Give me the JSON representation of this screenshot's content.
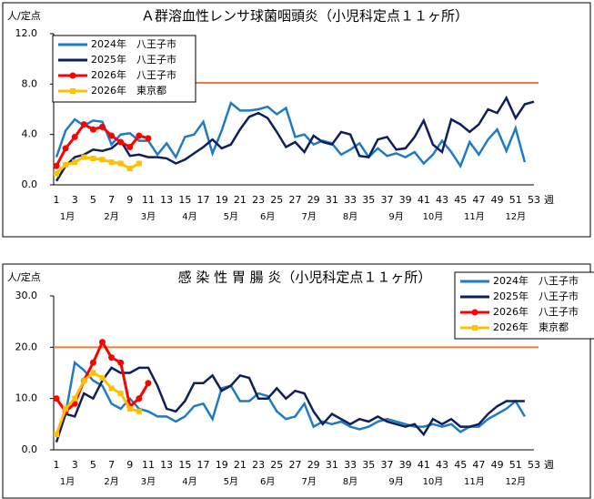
{
  "chart_data": [
    {
      "type": "line",
      "title": "Ａ群溶血性レンサ球菌咽頭炎（小児科定点１１ヶ所）",
      "y_label": "人/定点",
      "x_label": "週",
      "categories": [
        1,
        null,
        3,
        null,
        5,
        null,
        7,
        null,
        9,
        null,
        11,
        null,
        13,
        null,
        15,
        null,
        17,
        null,
        19,
        null,
        21,
        null,
        23,
        null,
        25,
        null,
        27,
        null,
        29,
        null,
        31,
        null,
        33,
        null,
        35,
        null,
        37,
        null,
        39,
        null,
        41,
        null,
        43,
        null,
        45,
        null,
        47,
        null,
        49,
        null,
        51,
        null,
        53
      ],
      "months": [
        "1月",
        "2月",
        "3月",
        "4月",
        "5月",
        "6月",
        "7月",
        "8月",
        "9月",
        "10月",
        "11月",
        "12月"
      ],
      "ylim": [
        0,
        12
      ],
      "yticks": [
        {
          "value": 0,
          "label": "0.0"
        },
        {
          "value": 4,
          "label": "4.0"
        },
        {
          "value": 8,
          "label": "8.0"
        },
        {
          "value": 12,
          "label": "12.0"
        }
      ],
      "reference_line": {
        "value": 8.1,
        "color": "#ed7d31"
      },
      "legend": "top-left",
      "series": [
        {
          "name": "2024年　八王子市",
          "color": "#1f7bc4",
          "marker": "none",
          "values": [
            2.2,
            4.3,
            5.2,
            4.7,
            5.1,
            5.0,
            3.2,
            4.0,
            4.1,
            3.5,
            3.5,
            2.4,
            3.3,
            2.2,
            3.8,
            4.0,
            5.0,
            2.5,
            4.3,
            6.5,
            5.9,
            5.9,
            6.0,
            6.2,
            5.6,
            6.1,
            3.8,
            4.0,
            3.2,
            3.5,
            3.3,
            2.4,
            2.8,
            3.3,
            2.2,
            2.9,
            2.3,
            2.5,
            2.2,
            2.6,
            1.7,
            2.4,
            3.5,
            2.6,
            1.5,
            3.4,
            2.4,
            3.6,
            4.4,
            2.7,
            4.5,
            1.8,
            null
          ]
        },
        {
          "name": "2025年　八王子市",
          "color": "#0f1f5c",
          "marker": "none",
          "values": [
            0.3,
            1.5,
            2.2,
            2.4,
            2.8,
            2.7,
            2.9,
            3.5,
            2.3,
            2.4,
            2.2,
            2.2,
            2.1,
            1.7,
            2.0,
            2.5,
            3.0,
            3.6,
            2.9,
            3.2,
            4.4,
            5.4,
            5.7,
            5.3,
            4.2,
            3.0,
            3.4,
            2.6,
            3.9,
            3.4,
            3.2,
            4.2,
            4.0,
            2.3,
            2.2,
            3.6,
            3.8,
            2.8,
            2.9,
            3.8,
            5.1,
            3.2,
            2.6,
            5.2,
            4.8,
            4.2,
            4.8,
            6.0,
            5.7,
            6.9,
            5.3,
            6.4,
            6.6
          ]
        },
        {
          "name": "2026年　八王子市",
          "color": "#ff0000",
          "marker": "circle",
          "values": [
            1.5,
            2.9,
            3.8,
            4.8,
            4.4,
            4.6,
            3.9,
            3.4,
            3.0,
            3.9,
            3.7,
            null,
            null,
            null,
            null,
            null,
            null,
            null,
            null,
            null,
            null,
            null,
            null,
            null,
            null,
            null,
            null,
            null,
            null,
            null,
            null,
            null,
            null,
            null,
            null,
            null,
            null,
            null,
            null,
            null,
            null,
            null,
            null,
            null,
            null,
            null,
            null,
            null,
            null,
            null,
            null,
            null,
            null
          ]
        },
        {
          "name": "2026年　東京都",
          "color": "#ffc000",
          "marker": "square",
          "values": [
            0.9,
            1.6,
            1.8,
            2.2,
            2.1,
            2.0,
            1.8,
            1.7,
            1.3,
            1.7,
            null,
            null,
            null,
            null,
            null,
            null,
            null,
            null,
            null,
            null,
            null,
            null,
            null,
            null,
            null,
            null,
            null,
            null,
            null,
            null,
            null,
            null,
            null,
            null,
            null,
            null,
            null,
            null,
            null,
            null,
            null,
            null,
            null,
            null,
            null,
            null,
            null,
            null,
            null,
            null,
            null,
            null,
            null
          ]
        }
      ]
    },
    {
      "type": "line",
      "title": "感 染 性 胃 腸 炎（小児科定点１１ヶ所）",
      "y_label": "人/定点",
      "x_label": "週",
      "categories": [
        1,
        null,
        3,
        null,
        5,
        null,
        7,
        null,
        9,
        null,
        11,
        null,
        13,
        null,
        15,
        null,
        17,
        null,
        19,
        null,
        21,
        null,
        23,
        null,
        25,
        null,
        27,
        null,
        29,
        null,
        31,
        null,
        33,
        null,
        35,
        null,
        37,
        null,
        39,
        null,
        41,
        null,
        43,
        null,
        45,
        null,
        47,
        null,
        49,
        null,
        51,
        null,
        53
      ],
      "months": [
        "1月",
        "2月",
        "3月",
        "4月",
        "5月",
        "6月",
        "7月",
        "8月",
        "9月",
        "10月",
        "11月",
        "12月"
      ],
      "ylim": [
        0,
        30
      ],
      "yticks": [
        {
          "value": 0,
          "label": "0.0"
        },
        {
          "value": 10,
          "label": "10.0"
        },
        {
          "value": 20,
          "label": "20.0"
        },
        {
          "value": 30,
          "label": "30.0"
        }
      ],
      "reference_line": {
        "value": 20,
        "color": "#ed7d31"
      },
      "legend": "top-right",
      "series": [
        {
          "name": "2024年　八王子市",
          "color": "#1f7bc4",
          "marker": "none",
          "values": [
            3,
            7,
            17,
            15.5,
            13.5,
            12.5,
            9,
            8,
            10,
            8,
            7.5,
            6.5,
            6.5,
            5.5,
            6.5,
            8.5,
            9,
            6,
            12,
            12.5,
            9.5,
            9.5,
            11,
            10.5,
            7.5,
            6,
            6.5,
            9,
            4.5,
            5.5,
            5,
            5.5,
            4.5,
            4,
            4.5,
            5.5,
            6,
            5.5,
            5,
            4.5,
            4.5,
            5,
            4.5,
            5,
            3.5,
            4.5,
            4.5,
            6,
            7,
            8,
            9.5,
            6.5,
            null
          ]
        },
        {
          "name": "2025年　八王子市",
          "color": "#0f1f5c",
          "marker": "none",
          "values": [
            1.5,
            7,
            6.5,
            11,
            10,
            13.5,
            16,
            15,
            15,
            16,
            16,
            12.5,
            8,
            7.5,
            9.5,
            13,
            13,
            14.5,
            11.5,
            12.5,
            14.5,
            14,
            10,
            10,
            12,
            10,
            11.5,
            11,
            7.5,
            5,
            7,
            6,
            5,
            6,
            5.5,
            6.5,
            5.5,
            5,
            4.5,
            5,
            3,
            6,
            5,
            6,
            4.5,
            4.5,
            5,
            7,
            8.5,
            9.5,
            9.5,
            9.5,
            null
          ]
        },
        {
          "name": "2026年　八王子市",
          "color": "#ff0000",
          "marker": "circle",
          "values": [
            10,
            7.5,
            9,
            13.5,
            17,
            21,
            18,
            17,
            8.5,
            10,
            13,
            null,
            null,
            null,
            null,
            null,
            null,
            null,
            null,
            null,
            null,
            null,
            null,
            null,
            null,
            null,
            null,
            null,
            null,
            null,
            null,
            null,
            null,
            null,
            null,
            null,
            null,
            null,
            null,
            null,
            null,
            null,
            null,
            null,
            null,
            null,
            null,
            null,
            null,
            null,
            null,
            null,
            null
          ]
        },
        {
          "name": "2026年　東京都",
          "color": "#ffc000",
          "marker": "square",
          "values": [
            3,
            8,
            10,
            13.5,
            15,
            14,
            12,
            11,
            8,
            7.5,
            null,
            null,
            null,
            null,
            null,
            null,
            null,
            null,
            null,
            null,
            null,
            null,
            null,
            null,
            null,
            null,
            null,
            null,
            null,
            null,
            null,
            null,
            null,
            null,
            null,
            null,
            null,
            null,
            null,
            null,
            null,
            null,
            null,
            null,
            null,
            null,
            null,
            null,
            null,
            null,
            null,
            null,
            null
          ]
        }
      ]
    }
  ]
}
